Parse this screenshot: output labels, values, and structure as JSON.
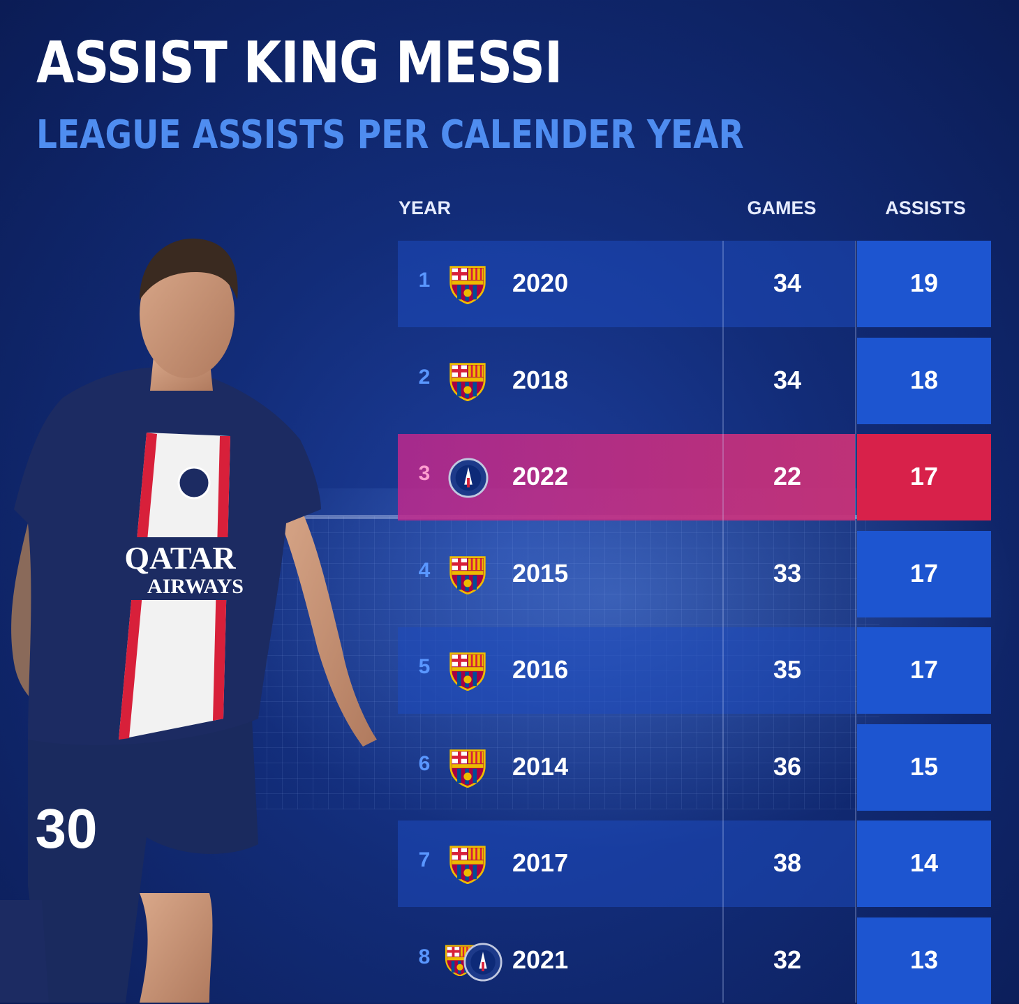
{
  "header": {
    "title": "ASSIST KING MESSI",
    "subtitle": "LEAGUE ASSISTS PER CALENDER YEAR"
  },
  "columns": {
    "year": "YEAR",
    "games": "GAMES",
    "assists": "ASSISTS"
  },
  "colors": {
    "background": "#122c78",
    "row": "#1e4bbe",
    "assists_cell": "#1d55d0",
    "highlight": "#d8214a",
    "rank": "#5a97ff",
    "subtitle": "#4f8df0"
  },
  "chart_data": {
    "type": "table",
    "title": "ASSIST KING MESSI",
    "subtitle": "LEAGUE ASSISTS PER CALENDER YEAR",
    "columns": [
      "YEAR",
      "GAMES",
      "ASSISTS"
    ],
    "rows": [
      {
        "rank": "1",
        "club": "barcelona-crest-icon",
        "year": "2020",
        "games": "34",
        "assists": "19"
      },
      {
        "rank": "2",
        "club": "barcelona-crest-icon",
        "year": "2018",
        "games": "34",
        "assists": "18"
      },
      {
        "rank": "3",
        "club": "psg-crest-icon",
        "year": "2022",
        "games": "22",
        "assists": "17",
        "highlight": true
      },
      {
        "rank": "4",
        "club": "barcelona-crest-icon",
        "year": "2015",
        "games": "33",
        "assists": "17"
      },
      {
        "rank": "5",
        "club": "barcelona-crest-icon",
        "year": "2016",
        "games": "35",
        "assists": "17"
      },
      {
        "rank": "6",
        "club": "barcelona-crest-icon",
        "year": "2014",
        "games": "36",
        "assists": "15"
      },
      {
        "rank": "7",
        "club": "barcelona-crest-icon",
        "year": "2017",
        "games": "38",
        "assists": "14"
      },
      {
        "rank": "8",
        "club": "barcelona-and-psg-crest-icon",
        "year": "2021",
        "games": "32",
        "assists": "13"
      }
    ]
  },
  "player": {
    "shirt_sponsor_line1": "QATAR",
    "shirt_sponsor_line2": "AIRWAYS",
    "shirt_number": "30"
  }
}
